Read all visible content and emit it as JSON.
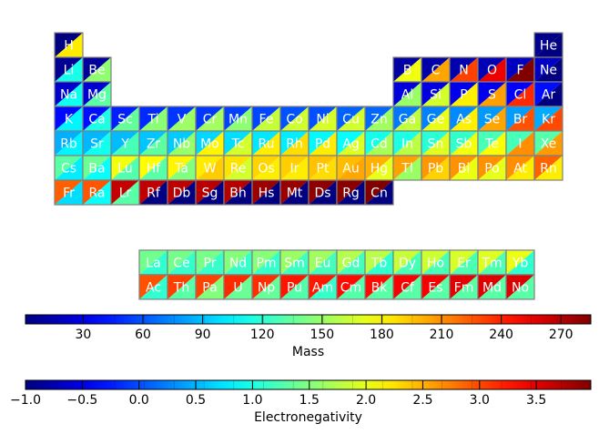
{
  "chart_data": {
    "type": "heatmap",
    "colormap": "jet",
    "cell_split": "diagonal; upper-left triangle colored by mass, lower-right triangle colored by electronegativity",
    "table": [
      {
        "symbol": "H",
        "period": 1,
        "group": 1,
        "mass": 1.008,
        "en": 2.2
      },
      {
        "symbol": "He",
        "period": 1,
        "group": 18,
        "mass": 4.003,
        "en": -1.0
      },
      {
        "symbol": "Li",
        "period": 2,
        "group": 1,
        "mass": 6.94,
        "en": 0.98
      },
      {
        "symbol": "Be",
        "period": 2,
        "group": 2,
        "mass": 9.012,
        "en": 1.57
      },
      {
        "symbol": "B",
        "period": 2,
        "group": 13,
        "mass": 10.81,
        "en": 2.04
      },
      {
        "symbol": "C",
        "period": 2,
        "group": 14,
        "mass": 12.011,
        "en": 2.55
      },
      {
        "symbol": "N",
        "period": 2,
        "group": 15,
        "mass": 14.007,
        "en": 3.04
      },
      {
        "symbol": "O",
        "period": 2,
        "group": 16,
        "mass": 15.999,
        "en": 3.44
      },
      {
        "symbol": "F",
        "period": 2,
        "group": 17,
        "mass": 18.998,
        "en": 3.98
      },
      {
        "symbol": "Ne",
        "period": 2,
        "group": 18,
        "mass": 20.18,
        "en": -1.0
      },
      {
        "symbol": "Na",
        "period": 3,
        "group": 1,
        "mass": 22.99,
        "en": 0.93
      },
      {
        "symbol": "Mg",
        "period": 3,
        "group": 2,
        "mass": 24.305,
        "en": 1.31
      },
      {
        "symbol": "Al",
        "period": 3,
        "group": 13,
        "mass": 26.982,
        "en": 1.61
      },
      {
        "symbol": "Si",
        "period": 3,
        "group": 14,
        "mass": 28.085,
        "en": 1.9
      },
      {
        "symbol": "P",
        "period": 3,
        "group": 15,
        "mass": 30.974,
        "en": 2.19
      },
      {
        "symbol": "S",
        "period": 3,
        "group": 16,
        "mass": 32.06,
        "en": 2.58
      },
      {
        "symbol": "Cl",
        "period": 3,
        "group": 17,
        "mass": 35.45,
        "en": 3.16
      },
      {
        "symbol": "Ar",
        "period": 3,
        "group": 18,
        "mass": 39.948,
        "en": -1.0
      },
      {
        "symbol": "K",
        "period": 4,
        "group": 1,
        "mass": 39.098,
        "en": 0.82
      },
      {
        "symbol": "Ca",
        "period": 4,
        "group": 2,
        "mass": 40.078,
        "en": 1.0
      },
      {
        "symbol": "Sc",
        "period": 4,
        "group": 3,
        "mass": 44.956,
        "en": 1.36
      },
      {
        "symbol": "Ti",
        "period": 4,
        "group": 4,
        "mass": 47.867,
        "en": 1.54
      },
      {
        "symbol": "V",
        "period": 4,
        "group": 5,
        "mass": 50.942,
        "en": 1.63
      },
      {
        "symbol": "Cr",
        "period": 4,
        "group": 6,
        "mass": 51.996,
        "en": 1.66
      },
      {
        "symbol": "Mn",
        "period": 4,
        "group": 7,
        "mass": 54.938,
        "en": 1.55
      },
      {
        "symbol": "Fe",
        "period": 4,
        "group": 8,
        "mass": 55.845,
        "en": 1.83
      },
      {
        "symbol": "Co",
        "period": 4,
        "group": 9,
        "mass": 58.933,
        "en": 1.88
      },
      {
        "symbol": "Ni",
        "period": 4,
        "group": 10,
        "mass": 58.693,
        "en": 1.91
      },
      {
        "symbol": "Cu",
        "period": 4,
        "group": 11,
        "mass": 63.546,
        "en": 1.9
      },
      {
        "symbol": "Zn",
        "period": 4,
        "group": 12,
        "mass": 65.38,
        "en": 1.65
      },
      {
        "symbol": "Ga",
        "period": 4,
        "group": 13,
        "mass": 69.723,
        "en": 1.81
      },
      {
        "symbol": "Ge",
        "period": 4,
        "group": 14,
        "mass": 72.63,
        "en": 2.01
      },
      {
        "symbol": "As",
        "period": 4,
        "group": 15,
        "mass": 74.922,
        "en": 2.18
      },
      {
        "symbol": "Se",
        "period": 4,
        "group": 16,
        "mass": 78.971,
        "en": 2.55
      },
      {
        "symbol": "Br",
        "period": 4,
        "group": 17,
        "mass": 79.904,
        "en": 2.96
      },
      {
        "symbol": "Kr",
        "period": 4,
        "group": 18,
        "mass": 83.798,
        "en": 3.0
      },
      {
        "symbol": "Rb",
        "period": 5,
        "group": 1,
        "mass": 85.468,
        "en": 0.82
      },
      {
        "symbol": "Sr",
        "period": 5,
        "group": 2,
        "mass": 87.62,
        "en": 0.95
      },
      {
        "symbol": "Y",
        "period": 5,
        "group": 3,
        "mass": 88.906,
        "en": 1.22
      },
      {
        "symbol": "Zr",
        "period": 5,
        "group": 4,
        "mass": 91.224,
        "en": 1.33
      },
      {
        "symbol": "Nb",
        "period": 5,
        "group": 5,
        "mass": 92.906,
        "en": 1.6
      },
      {
        "symbol": "Mo",
        "period": 5,
        "group": 6,
        "mass": 95.95,
        "en": 2.16
      },
      {
        "symbol": "Tc",
        "period": 5,
        "group": 7,
        "mass": 98,
        "en": 1.9
      },
      {
        "symbol": "Ru",
        "period": 5,
        "group": 8,
        "mass": 101.07,
        "en": 2.2
      },
      {
        "symbol": "Rh",
        "period": 5,
        "group": 9,
        "mass": 102.91,
        "en": 2.28
      },
      {
        "symbol": "Pd",
        "period": 5,
        "group": 10,
        "mass": 106.42,
        "en": 2.2
      },
      {
        "symbol": "Ag",
        "period": 5,
        "group": 11,
        "mass": 107.87,
        "en": 1.93
      },
      {
        "symbol": "Cd",
        "period": 5,
        "group": 12,
        "mass": 112.41,
        "en": 1.69
      },
      {
        "symbol": "In",
        "period": 5,
        "group": 13,
        "mass": 114.82,
        "en": 1.78
      },
      {
        "symbol": "Sn",
        "period": 5,
        "group": 14,
        "mass": 118.71,
        "en": 1.96
      },
      {
        "symbol": "Sb",
        "period": 5,
        "group": 15,
        "mass": 121.76,
        "en": 2.05
      },
      {
        "symbol": "Te",
        "period": 5,
        "group": 16,
        "mass": 127.6,
        "en": 2.1
      },
      {
        "symbol": "I",
        "period": 5,
        "group": 17,
        "mass": 126.9,
        "en": 2.66
      },
      {
        "symbol": "Xe",
        "period": 5,
        "group": 18,
        "mass": 131.29,
        "en": 2.6
      },
      {
        "symbol": "Cs",
        "period": 6,
        "group": 1,
        "mass": 132.91,
        "en": 0.79
      },
      {
        "symbol": "Ba",
        "period": 6,
        "group": 2,
        "mass": 137.33,
        "en": 0.89
      },
      {
        "symbol": "Lu",
        "period": 6,
        "group": 3,
        "mass": 174.97,
        "en": 1.27
      },
      {
        "symbol": "Hf",
        "period": 6,
        "group": 4,
        "mass": 178.49,
        "en": 1.3
      },
      {
        "symbol": "Ta",
        "period": 6,
        "group": 5,
        "mass": 180.95,
        "en": 1.5
      },
      {
        "symbol": "W",
        "period": 6,
        "group": 6,
        "mass": 183.84,
        "en": 2.36
      },
      {
        "symbol": "Re",
        "period": 6,
        "group": 7,
        "mass": 186.21,
        "en": 1.9
      },
      {
        "symbol": "Os",
        "period": 6,
        "group": 8,
        "mass": 190.23,
        "en": 2.2
      },
      {
        "symbol": "Ir",
        "period": 6,
        "group": 9,
        "mass": 192.22,
        "en": 2.2
      },
      {
        "symbol": "Pt",
        "period": 6,
        "group": 10,
        "mass": 195.08,
        "en": 2.28
      },
      {
        "symbol": "Au",
        "period": 6,
        "group": 11,
        "mass": 196.97,
        "en": 2.54
      },
      {
        "symbol": "Hg",
        "period": 6,
        "group": 12,
        "mass": 200.59,
        "en": 2.0
      },
      {
        "symbol": "Tl",
        "period": 6,
        "group": 13,
        "mass": 204.38,
        "en": 1.62
      },
      {
        "symbol": "Pb",
        "period": 6,
        "group": 14,
        "mass": 207.2,
        "en": 2.33
      },
      {
        "symbol": "Bi",
        "period": 6,
        "group": 15,
        "mass": 208.98,
        "en": 2.02
      },
      {
        "symbol": "Po",
        "period": 6,
        "group": 16,
        "mass": 209,
        "en": 2.0
      },
      {
        "symbol": "At",
        "period": 6,
        "group": 17,
        "mass": 210,
        "en": 2.2
      },
      {
        "symbol": "Rn",
        "period": 6,
        "group": 18,
        "mass": 222,
        "en": 2.2
      },
      {
        "symbol": "Fr",
        "period": 7,
        "group": 1,
        "mass": 223,
        "en": 0.7
      },
      {
        "symbol": "Ra",
        "period": 7,
        "group": 2,
        "mass": 226,
        "en": 0.9
      },
      {
        "symbol": "Lr",
        "period": 7,
        "group": 3,
        "mass": 266,
        "en": 1.3
      },
      {
        "symbol": "Rf",
        "period": 7,
        "group": 4,
        "mass": 267,
        "en": -1.0
      },
      {
        "symbol": "Db",
        "period": 7,
        "group": 5,
        "mass": 268,
        "en": -1.0
      },
      {
        "symbol": "Sg",
        "period": 7,
        "group": 6,
        "mass": 269,
        "en": -1.0
      },
      {
        "symbol": "Bh",
        "period": 7,
        "group": 7,
        "mass": 270,
        "en": -1.0
      },
      {
        "symbol": "Hs",
        "period": 7,
        "group": 8,
        "mass": 277,
        "en": -1.0
      },
      {
        "symbol": "Mt",
        "period": 7,
        "group": 9,
        "mass": 278,
        "en": -1.0
      },
      {
        "symbol": "Ds",
        "period": 7,
        "group": 10,
        "mass": 281,
        "en": -1.0
      },
      {
        "symbol": "Rg",
        "period": 7,
        "group": 11,
        "mass": 282,
        "en": -1.0
      },
      {
        "symbol": "Cn",
        "period": 7,
        "group": 12,
        "mass": 285,
        "en": -1.0
      },
      {
        "symbol": "La",
        "period": 9,
        "group": 4,
        "mass": 138.91,
        "en": 1.1
      },
      {
        "symbol": "Ce",
        "period": 9,
        "group": 5,
        "mass": 140.12,
        "en": 1.12
      },
      {
        "symbol": "Pr",
        "period": 9,
        "group": 6,
        "mass": 140.91,
        "en": 1.13
      },
      {
        "symbol": "Nd",
        "period": 9,
        "group": 7,
        "mass": 144.24,
        "en": 1.14
      },
      {
        "symbol": "Pm",
        "period": 9,
        "group": 8,
        "mass": 145,
        "en": 1.13
      },
      {
        "symbol": "Sm",
        "period": 9,
        "group": 9,
        "mass": 150.36,
        "en": 1.17
      },
      {
        "symbol": "Eu",
        "period": 9,
        "group": 10,
        "mass": 151.96,
        "en": 1.2
      },
      {
        "symbol": "Gd",
        "period": 9,
        "group": 11,
        "mass": 157.25,
        "en": 1.2
      },
      {
        "symbol": "Tb",
        "period": 9,
        "group": 12,
        "mass": 158.93,
        "en": 1.1
      },
      {
        "symbol": "Dy",
        "period": 9,
        "group": 13,
        "mass": 162.5,
        "en": 1.22
      },
      {
        "symbol": "Ho",
        "period": 9,
        "group": 14,
        "mass": 164.93,
        "en": 1.23
      },
      {
        "symbol": "Er",
        "period": 9,
        "group": 15,
        "mass": 167.26,
        "en": 1.24
      },
      {
        "symbol": "Tm",
        "period": 9,
        "group": 16,
        "mass": 168.93,
        "en": 1.25
      },
      {
        "symbol": "Yb",
        "period": 9,
        "group": 17,
        "mass": 173.05,
        "en": 1.1
      },
      {
        "symbol": "Ac",
        "period": 10,
        "group": 4,
        "mass": 227,
        "en": 1.1
      },
      {
        "symbol": "Th",
        "period": 10,
        "group": 5,
        "mass": 232.04,
        "en": 1.3
      },
      {
        "symbol": "Pa",
        "period": 10,
        "group": 6,
        "mass": 231.04,
        "en": 1.5
      },
      {
        "symbol": "U",
        "period": 10,
        "group": 7,
        "mass": 238.03,
        "en": 1.38
      },
      {
        "symbol": "Np",
        "period": 10,
        "group": 8,
        "mass": 237,
        "en": 1.36
      },
      {
        "symbol": "Pu",
        "period": 10,
        "group": 9,
        "mass": 244,
        "en": 1.28
      },
      {
        "symbol": "Am",
        "period": 10,
        "group": 10,
        "mass": 243,
        "en": 1.13
      },
      {
        "symbol": "Cm",
        "period": 10,
        "group": 11,
        "mass": 247,
        "en": 1.28
      },
      {
        "symbol": "Bk",
        "period": 10,
        "group": 12,
        "mass": 247,
        "en": 1.3
      },
      {
        "symbol": "Cf",
        "period": 10,
        "group": 13,
        "mass": 251,
        "en": 1.3
      },
      {
        "symbol": "Es",
        "period": 10,
        "group": 14,
        "mass": 252,
        "en": 1.3
      },
      {
        "symbol": "Fm",
        "period": 10,
        "group": 15,
        "mass": 257,
        "en": 1.3
      },
      {
        "symbol": "Md",
        "period": 10,
        "group": 16,
        "mass": 258,
        "en": 1.3
      },
      {
        "symbol": "No",
        "period": 10,
        "group": 17,
        "mass": 259,
        "en": 1.3
      }
    ],
    "colorbars": [
      {
        "key": "mass",
        "label": "Mass",
        "range": [
          1,
          285
        ],
        "ticks": [
          30,
          60,
          90,
          120,
          150,
          180,
          210,
          240,
          270
        ]
      },
      {
        "key": "en",
        "label": "Electronegativity",
        "range": [
          -1.0,
          3.98
        ],
        "ticks": [
          -1.0,
          -0.5,
          0.0,
          0.5,
          1.0,
          1.5,
          2.0,
          2.5,
          3.0,
          3.5
        ],
        "tick_labels": [
          "−1.0",
          "−0.5",
          "0.0",
          "0.5",
          "1.0",
          "1.5",
          "2.0",
          "2.5",
          "3.0",
          "3.5"
        ]
      }
    ],
    "colors": {
      "cell_border": "#808080",
      "symbol_text": "#ffffff",
      "axis_text": "#000000"
    }
  }
}
